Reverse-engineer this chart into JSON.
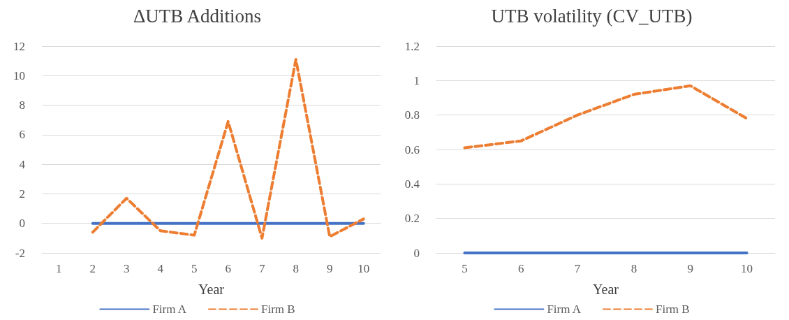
{
  "chart_data": [
    {
      "type": "line",
      "title": "ΔUTB Additions",
      "xlabel": "Year",
      "categories": [
        "1",
        "2",
        "3",
        "4",
        "5",
        "6",
        "7",
        "8",
        "9",
        "10"
      ],
      "ylim": [
        -2,
        12
      ],
      "yticks": [
        -2,
        0,
        2,
        4,
        6,
        8,
        10,
        12
      ],
      "grid": "y",
      "legend": "bottom",
      "marker": "none",
      "series": [
        {
          "name": "Firm A",
          "color": "#4472c4",
          "line_style": "solid",
          "values": [
            null,
            0,
            0,
            0,
            0,
            0,
            0,
            0,
            0,
            0
          ]
        },
        {
          "name": "Firm B",
          "color": "#ed7d31",
          "line_style": "dashed",
          "values": [
            null,
            -0.6,
            1.7,
            -0.5,
            -0.8,
            6.9,
            -1.0,
            11.1,
            -0.9,
            0.3
          ]
        }
      ]
    },
    {
      "type": "line",
      "title": "UTB volatility (CV_UTB)",
      "xlabel": "Year",
      "categories": [
        "5",
        "6",
        "7",
        "8",
        "9",
        "10"
      ],
      "ylim": [
        0,
        1.2
      ],
      "yticks": [
        0,
        0.2,
        0.4,
        0.6,
        0.8,
        1,
        1.2
      ],
      "grid": "y",
      "legend": "bottom",
      "marker": "none",
      "series": [
        {
          "name": "Firm A",
          "color": "#4472c4",
          "line_style": "solid",
          "values": [
            0,
            0,
            0,
            0,
            0,
            0
          ]
        },
        {
          "name": "Firm B",
          "color": "#ed7d31",
          "line_style": "dashed",
          "values": [
            0.61,
            0.65,
            0.8,
            0.92,
            0.97,
            0.78
          ]
        }
      ]
    }
  ]
}
